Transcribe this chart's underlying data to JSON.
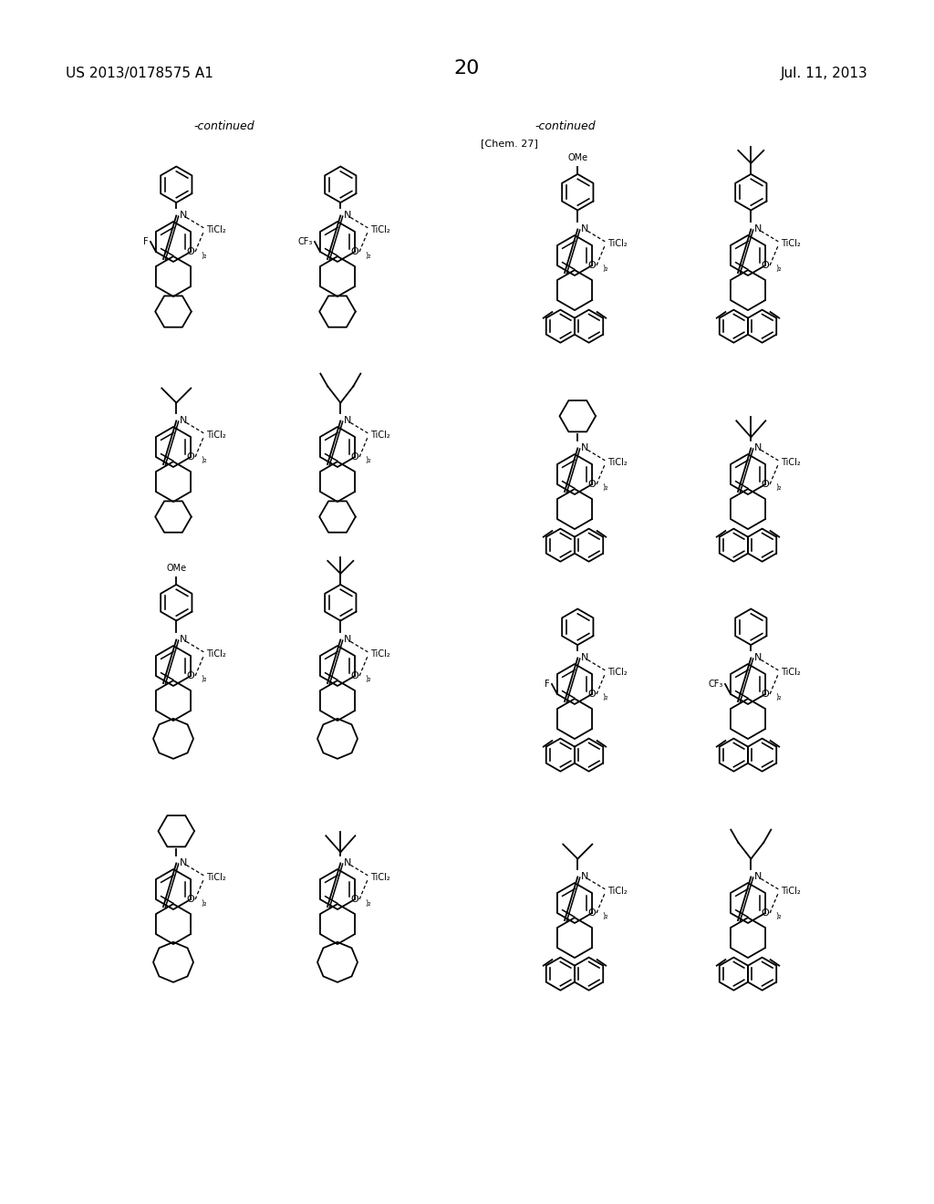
{
  "page_number": "20",
  "patent_number": "US 2013/0178575 A1",
  "date": "Jul. 11, 2013",
  "background_color": "#ffffff",
  "text_color": "#000000",
  "left_label": "-continued",
  "right_label": "-continued",
  "chem_label": "[Chem. 27]"
}
